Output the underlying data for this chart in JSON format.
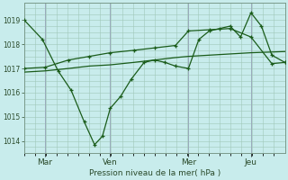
{
  "title": "Pression niveau de la mer( hPa )",
  "bg_color": "#c8ecec",
  "grid_color": "#a0c8b8",
  "line_color": "#1a5c1a",
  "vline_color": "#99aabb",
  "ylim": [
    1013.5,
    1019.7
  ],
  "yticks": [
    1014,
    1015,
    1016,
    1017,
    1018,
    1019
  ],
  "day_labels": [
    "Mar",
    "Ven",
    "Mer",
    "Jeu"
  ],
  "day_positions": [
    0.08,
    0.33,
    0.63,
    0.87
  ],
  "series1_x": [
    0.0,
    0.07,
    0.13,
    0.18,
    0.23,
    0.27,
    0.3,
    0.33,
    0.37,
    0.41,
    0.46,
    0.5,
    0.54,
    0.58,
    0.63,
    0.67,
    0.71,
    0.75,
    0.79,
    0.83,
    0.87,
    0.91,
    0.95,
    1.0
  ],
  "series1_y": [
    1019.0,
    1018.2,
    1016.9,
    1016.1,
    1014.8,
    1013.85,
    1014.2,
    1015.35,
    1015.85,
    1016.55,
    1017.25,
    1017.35,
    1017.25,
    1017.1,
    1017.0,
    1018.2,
    1018.55,
    1018.65,
    1018.75,
    1018.3,
    1019.3,
    1018.75,
    1017.55,
    1017.25
  ],
  "series2_x": [
    0.0,
    0.08,
    0.17,
    0.25,
    0.33,
    0.42,
    0.5,
    0.58,
    0.63,
    0.71,
    0.79,
    0.87,
    0.95,
    1.0
  ],
  "series2_y": [
    1016.85,
    1016.9,
    1017.0,
    1017.1,
    1017.15,
    1017.25,
    1017.35,
    1017.45,
    1017.5,
    1017.55,
    1017.6,
    1017.65,
    1017.68,
    1017.7
  ],
  "series3_x": [
    0.0,
    0.08,
    0.17,
    0.25,
    0.33,
    0.42,
    0.5,
    0.58,
    0.63,
    0.71,
    0.79,
    0.87,
    0.95,
    1.0
  ],
  "series3_y": [
    1017.0,
    1017.05,
    1017.35,
    1017.5,
    1017.65,
    1017.75,
    1017.85,
    1017.95,
    1018.55,
    1018.6,
    1018.65,
    1018.3,
    1017.2,
    1017.25
  ]
}
